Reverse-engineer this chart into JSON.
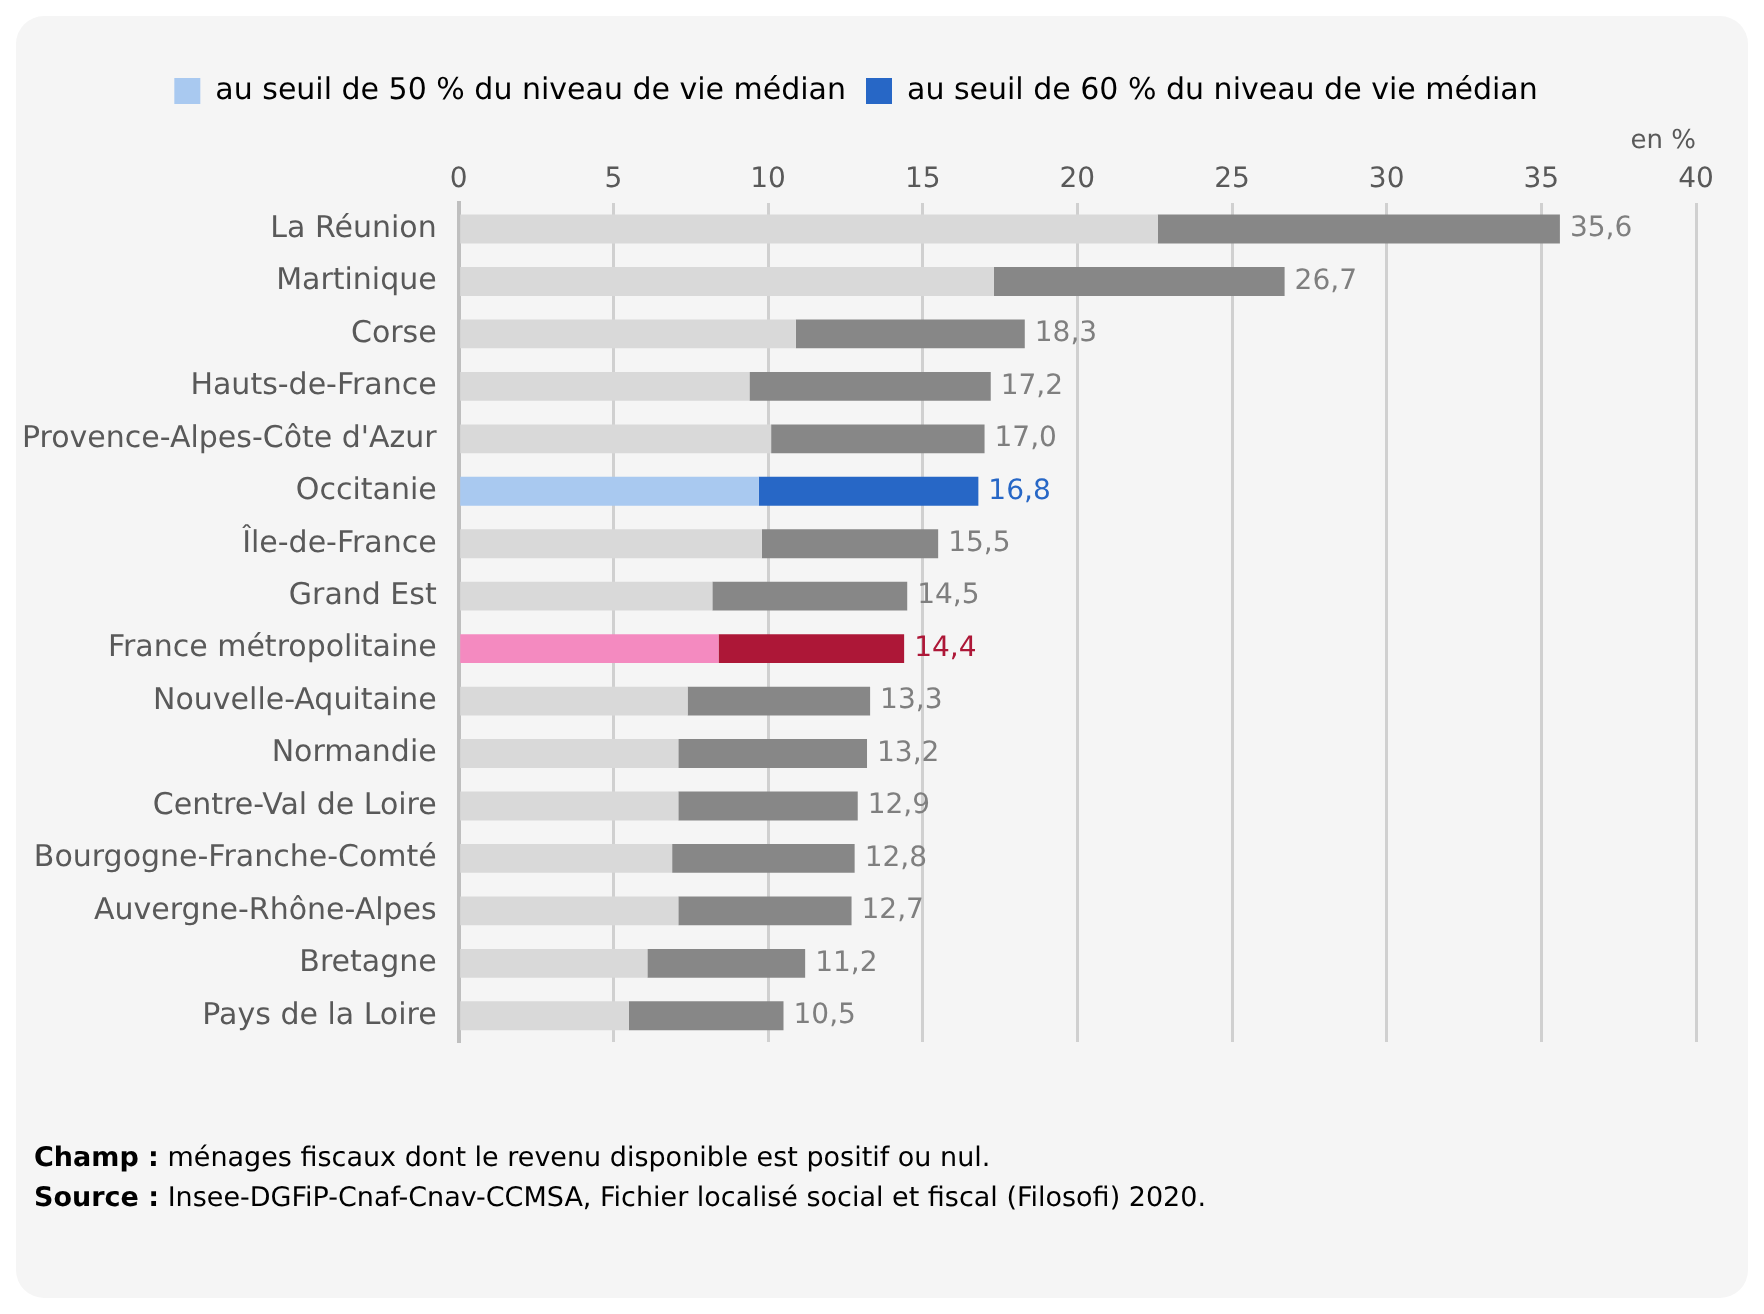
{
  "chart_data": {
    "type": "bar",
    "orientation": "horizontal",
    "stacked": true,
    "xlabel": "en %",
    "categories": [
      "La Réunion",
      "Martinique",
      "Corse",
      "Hauts-de-France",
      "Provence-Alpes-Côte d'Azur",
      "Occitanie",
      "Île-de-France",
      "Grand Est",
      "France métropolitaine",
      "Nouvelle-Aquitaine",
      "Normandie",
      "Centre-Val de Loire",
      "Bourgogne-Franche-Comté",
      "Auvergne-Rhône-Alpes",
      "Bretagne",
      "Pays de la Loire"
    ],
    "series": [
      {
        "name": "au seuil de 50 % du niveau de vie médian",
        "color": "#a9c9f0",
        "colors": [
          "#d9d9d9",
          "#d9d9d9",
          "#d9d9d9",
          "#d9d9d9",
          "#d9d9d9",
          "#a9c9f0",
          "#d9d9d9",
          "#d9d9d9",
          "#f48ac0",
          "#d9d9d9",
          "#d9d9d9",
          "#d9d9d9",
          "#d9d9d9",
          "#d9d9d9",
          "#d9d9d9",
          "#d9d9d9"
        ],
        "values": [
          22.6,
          17.3,
          10.9,
          9.4,
          10.1,
          9.7,
          9.8,
          8.2,
          8.4,
          7.4,
          7.1,
          7.1,
          6.9,
          7.1,
          6.1,
          5.5
        ]
      },
      {
        "name": "au seuil de 60 % du niveau de vie médian",
        "color": "#2767c6",
        "colors": [
          "#878787",
          "#878787",
          "#878787",
          "#878787",
          "#878787",
          "#2767c6",
          "#878787",
          "#878787",
          "#ad1737",
          "#878787",
          "#878787",
          "#878787",
          "#878787",
          "#878787",
          "#878787",
          "#878787"
        ],
        "values": [
          13.0,
          9.4,
          7.4,
          7.8,
          6.9,
          7.1,
          5.7,
          6.3,
          6.0,
          5.9,
          6.1,
          5.8,
          5.9,
          5.6,
          5.1,
          5.0
        ]
      }
    ],
    "totals": [
      "35,6",
      "26,7",
      "18,3",
      "17,2",
      "17,0",
      "16,8",
      "15,5",
      "14,5",
      "14,4",
      "13,3",
      "13,2",
      "12,9",
      "12,8",
      "12,7",
      "11,2",
      "10,5"
    ],
    "xlim": [
      0,
      40
    ],
    "xticks": [
      0,
      5,
      10,
      15,
      20,
      25,
      30,
      35,
      40
    ],
    "grid": "x",
    "legend": "top",
    "annotations": [
      "Champ :  ménages fiscaux dont le revenu disponible est positif ou nul.",
      "Source : Insee-DGFiP-Cnaf-Cnav-CCMSA, Fichier localisé social et fiscal (Filosofi) 2020."
    ]
  }
}
